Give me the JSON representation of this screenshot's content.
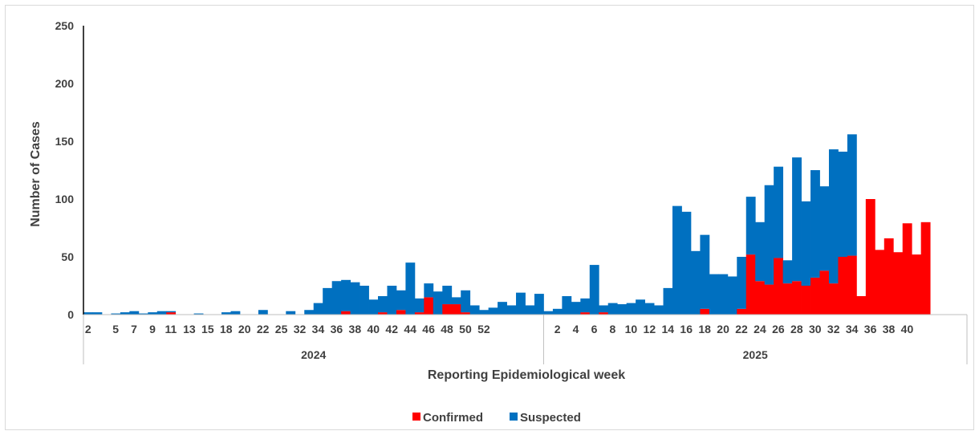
{
  "chart_data": {
    "type": "bar",
    "stacked": true,
    "xlabel": "Reporting Epidemiological week",
    "ylabel": "Number of Cases",
    "ylim": [
      0,
      250
    ],
    "yticks": [
      0,
      50,
      100,
      150,
      200,
      250
    ],
    "grid": false,
    "legend": "bottom",
    "colors": {
      "confirmed": "#ff0000",
      "suspected": "#0070c0"
    },
    "groups": [
      {
        "label": "2024",
        "start": 0,
        "end": 50
      },
      {
        "label": "2025",
        "start": 50,
        "end": 96
      }
    ],
    "x": [
      "2",
      "3",
      "4",
      "5",
      "6",
      "7",
      "8",
      "9",
      "10",
      "11",
      "12",
      "13",
      "14",
      "15",
      "16",
      "18",
      "19",
      "20",
      "21",
      "22",
      "24",
      "25",
      "30",
      "32",
      "33",
      "34",
      "35",
      "36",
      "37",
      "38",
      "39",
      "40",
      "41",
      "42",
      "43",
      "44",
      "45",
      "46",
      "47",
      "48",
      "49",
      "50",
      "51",
      "52",
      "2",
      "3",
      "4",
      "5",
      "6",
      "7",
      "1",
      "2",
      "3",
      "4",
      "5",
      "6",
      "7",
      "8",
      "9",
      "10",
      "11",
      "12",
      "13",
      "14",
      "15",
      "16",
      "17",
      "18",
      "19",
      "20",
      "21",
      "22",
      "23",
      "24",
      "25",
      "26",
      "27",
      "28",
      "29",
      "30",
      "31",
      "32",
      "33",
      "34",
      "35",
      "36",
      "37",
      "38",
      "39",
      "40",
      "41",
      "42",
      "43",
      "44",
      "45",
      "46"
    ],
    "tick_labels": [
      {
        "i": 0,
        "label": "2"
      },
      {
        "i": 3,
        "label": "5"
      },
      {
        "i": 5,
        "label": "7"
      },
      {
        "i": 7,
        "label": "9"
      },
      {
        "i": 9,
        "label": "11"
      },
      {
        "i": 11,
        "label": "13"
      },
      {
        "i": 13,
        "label": "15"
      },
      {
        "i": 15,
        "label": "18"
      },
      {
        "i": 17,
        "label": "20"
      },
      {
        "i": 19,
        "label": "22"
      },
      {
        "i": 21,
        "label": "25"
      },
      {
        "i": 23,
        "label": "32"
      },
      {
        "i": 25,
        "label": "34"
      },
      {
        "i": 27,
        "label": "36"
      },
      {
        "i": 29,
        "label": "38"
      },
      {
        "i": 31,
        "label": "40"
      },
      {
        "i": 33,
        "label": "42"
      },
      {
        "i": 35,
        "label": "44"
      },
      {
        "i": 37,
        "label": "46"
      },
      {
        "i": 39,
        "label": "48"
      },
      {
        "i": 41,
        "label": "50"
      },
      {
        "i": 43,
        "label": "52"
      },
      {
        "i": 51,
        "label": "2"
      },
      {
        "i": 53,
        "label": "4"
      },
      {
        "i": 55,
        "label": "6"
      },
      {
        "i": 57,
        "label": "8"
      },
      {
        "i": 59,
        "label": "10"
      },
      {
        "i": 61,
        "label": "12"
      },
      {
        "i": 63,
        "label": "14"
      },
      {
        "i": 65,
        "label": "16"
      },
      {
        "i": 67,
        "label": "18"
      },
      {
        "i": 69,
        "label": "20"
      },
      {
        "i": 71,
        "label": "22"
      },
      {
        "i": 73,
        "label": "24"
      },
      {
        "i": 75,
        "label": "26"
      },
      {
        "i": 77,
        "label": "28"
      },
      {
        "i": 79,
        "label": "30"
      },
      {
        "i": 81,
        "label": "32"
      },
      {
        "i": 83,
        "label": "34"
      },
      {
        "i": 85,
        "label": "36"
      },
      {
        "i": 87,
        "label": "38"
      },
      {
        "i": 89,
        "label": "40"
      }
    ],
    "series": [
      {
        "name": "Confirmed",
        "values": [
          0,
          0,
          0,
          0,
          0,
          0,
          0,
          0,
          0,
          2,
          0,
          0,
          0,
          0,
          0,
          0,
          0,
          0,
          0,
          0,
          0,
          0,
          0,
          0,
          0,
          0,
          0,
          0,
          3,
          0,
          0,
          0,
          2,
          0,
          4,
          0,
          2,
          15,
          0,
          9,
          9,
          2,
          0,
          0,
          0,
          0,
          0,
          0,
          0,
          0,
          0,
          0,
          0,
          0,
          2,
          0,
          2,
          0,
          0,
          0,
          0,
          0,
          0,
          0,
          0,
          0,
          0,
          5,
          0,
          0,
          0,
          5,
          52,
          29,
          26,
          49,
          27,
          29,
          25,
          32,
          38,
          27,
          50,
          51,
          16,
          100,
          56,
          66,
          54,
          79,
          52,
          80,
          0,
          0,
          0,
          0
        ]
      },
      {
        "name": "Suspected",
        "values": [
          2,
          2,
          0,
          1,
          2,
          3,
          1,
          2,
          3,
          1,
          0,
          0,
          1,
          0,
          0,
          2,
          3,
          0,
          0,
          4,
          0,
          0,
          3,
          0,
          4,
          10,
          23,
          29,
          27,
          28,
          25,
          13,
          14,
          25,
          17,
          45,
          12,
          12,
          20,
          16,
          6,
          19,
          8,
          4,
          6,
          11,
          8,
          19,
          8,
          18,
          3,
          5,
          16,
          11,
          12,
          43,
          6,
          10,
          9,
          10,
          13,
          10,
          8,
          23,
          94,
          89,
          55,
          64,
          35,
          35,
          33,
          45,
          50,
          51,
          86,
          79,
          20,
          107,
          73,
          93,
          73,
          116,
          91,
          105,
          0,
          0,
          0,
          0,
          0,
          0,
          0,
          0,
          0,
          0,
          0,
          0
        ]
      }
    ]
  }
}
